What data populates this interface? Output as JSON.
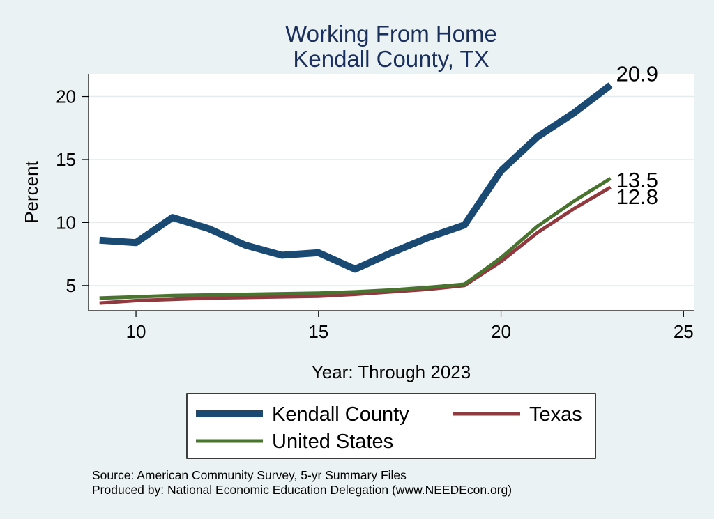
{
  "chart_data": {
    "type": "line",
    "title": [
      "Working From Home",
      "Kendall County, TX"
    ],
    "xlabel": "Year: Through 2023",
    "ylabel": "Percent",
    "xlim": [
      8.7,
      25.3
    ],
    "ylim": [
      3,
      21.8
    ],
    "xticks": [
      10,
      15,
      20,
      25
    ],
    "yticks": [
      5,
      10,
      15,
      20
    ],
    "grid": true,
    "legend_position": "bottom",
    "series": [
      {
        "name": "Kendall County",
        "color": "#1a4a72",
        "width": 10,
        "x": [
          9,
          10,
          11,
          12,
          13,
          14,
          15,
          16,
          17,
          18,
          19,
          20,
          21,
          22,
          23
        ],
        "y": [
          8.6,
          8.4,
          10.4,
          9.5,
          8.2,
          7.4,
          7.6,
          6.3,
          7.6,
          8.8,
          9.8,
          14.1,
          16.8,
          18.7,
          20.9
        ],
        "end_label": "20.9"
      },
      {
        "name": "Texas",
        "color": "#8f3a3f",
        "width": 5,
        "x": [
          9,
          10,
          11,
          12,
          13,
          14,
          15,
          16,
          17,
          18,
          19,
          20,
          21,
          22,
          23
        ],
        "y": [
          3.6,
          3.8,
          3.9,
          4.0,
          4.05,
          4.1,
          4.15,
          4.3,
          4.5,
          4.7,
          5.0,
          6.9,
          9.2,
          11.1,
          12.8
        ],
        "end_label": "12.8"
      },
      {
        "name": "United States",
        "color": "#4a7331",
        "width": 5,
        "x": [
          9,
          10,
          11,
          12,
          13,
          14,
          15,
          16,
          17,
          18,
          19,
          20,
          21,
          22,
          23
        ],
        "y": [
          4.0,
          4.1,
          4.2,
          4.25,
          4.3,
          4.35,
          4.4,
          4.5,
          4.65,
          4.85,
          5.1,
          7.2,
          9.7,
          11.7,
          13.5
        ],
        "end_label": "13.5"
      }
    ],
    "legend_order": [
      "Kendall County",
      "Texas",
      "United States"
    ],
    "notes": [
      "Source: American Community Survey, 5-yr Summary Files",
      "Produced by: National Economic Education Delegation (www.NEEDEcon.org)"
    ]
  }
}
